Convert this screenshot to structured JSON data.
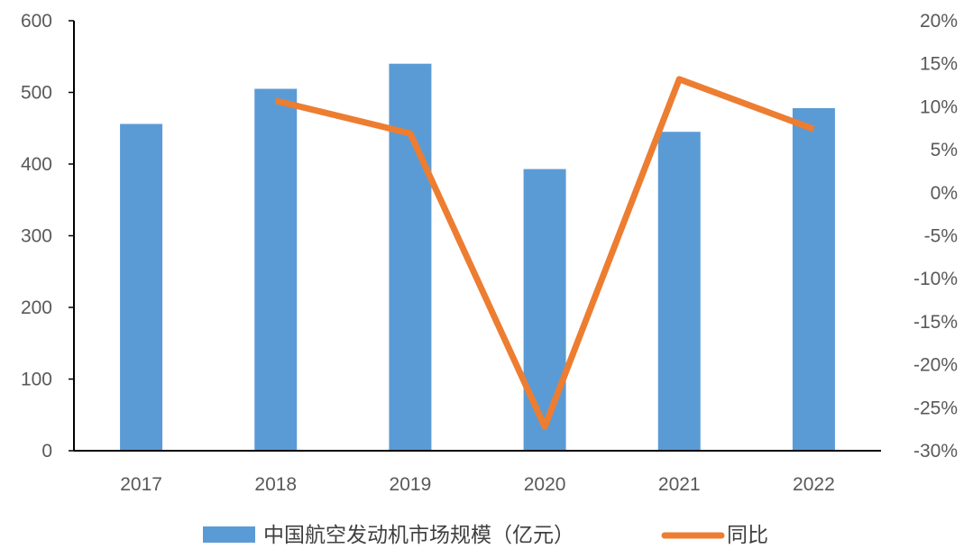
{
  "chart_data": {
    "type": "bar",
    "categories": [
      "2017",
      "2018",
      "2019",
      "2020",
      "2021",
      "2022"
    ],
    "series": [
      {
        "name": "中国航空发动机市场规模（亿元）",
        "type": "bar",
        "axis": "left",
        "color": "#5B9BD5",
        "values": [
          456,
          505,
          540,
          393,
          445,
          478
        ]
      },
      {
        "name": "同比",
        "type": "line",
        "axis": "right",
        "color": "#ED7D31",
        "values": [
          null,
          10.7,
          6.9,
          -27.2,
          13.2,
          7.4
        ]
      }
    ],
    "y_left": {
      "min": 0,
      "max": 600,
      "step": 100,
      "tick_labels": [
        "0",
        "100",
        "200",
        "300",
        "400",
        "500",
        "600"
      ]
    },
    "y_right": {
      "min": -30,
      "max": 20,
      "step": 5,
      "tick_labels": [
        "-30%",
        "-25%",
        "-20%",
        "-15%",
        "-10%",
        "-5%",
        "0%",
        "5%",
        "10%",
        "15%",
        "20%"
      ]
    },
    "grid": false,
    "legend_position": "bottom"
  }
}
